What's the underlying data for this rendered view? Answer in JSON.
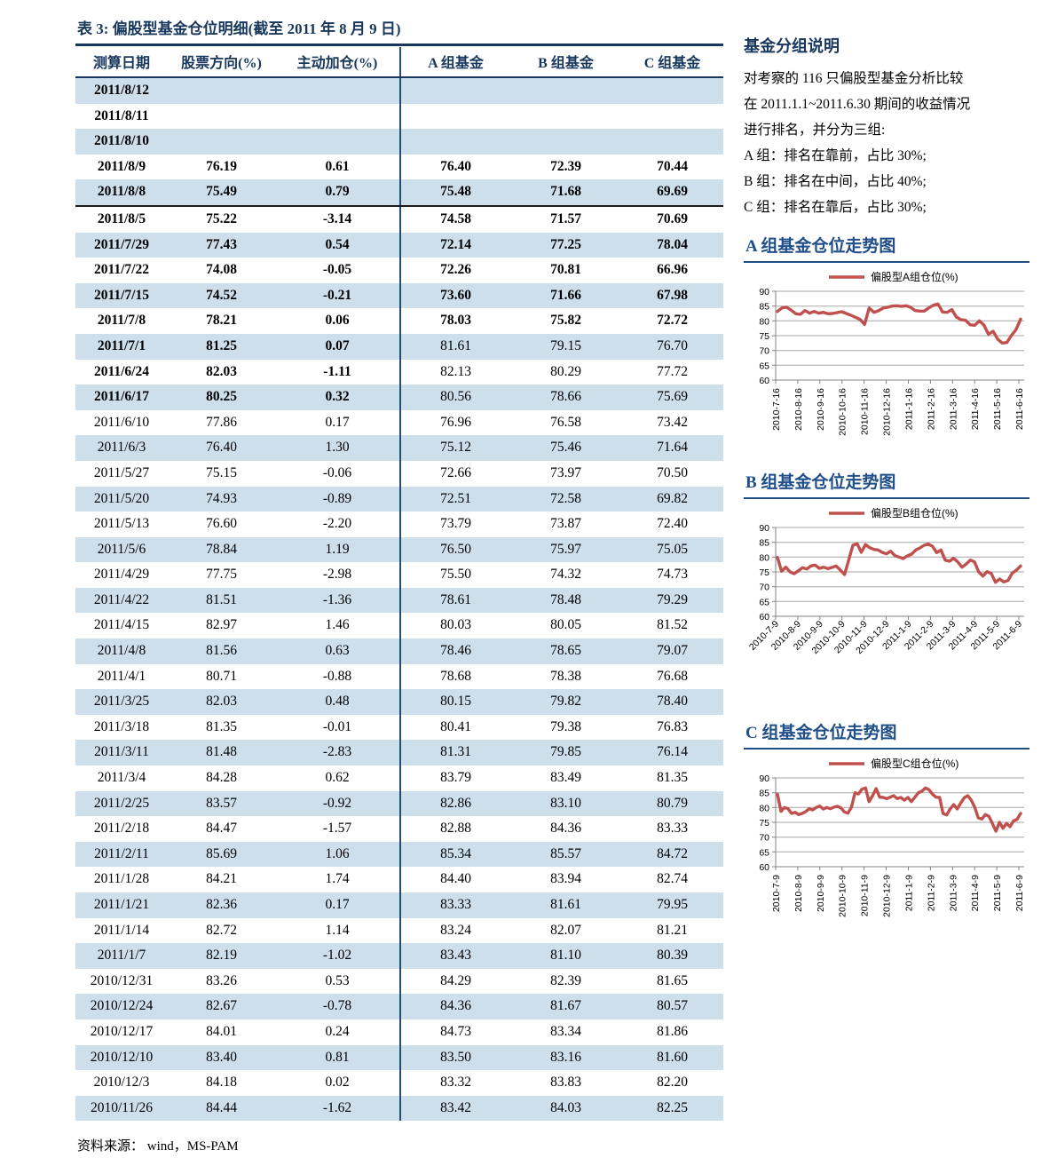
{
  "table": {
    "title": "表 3:  偏股型基金仓位明细(截至 2011 年 8 月 9 日)",
    "columns": [
      "测算日期",
      "股票方向(%)",
      "主动加仓(%)",
      "A 组基金",
      "B 组基金",
      "C 组基金"
    ],
    "rows": [
      {
        "c": [
          "2011/8/12",
          "",
          "",
          "",
          "",
          ""
        ],
        "emph": "full",
        "cut": false
      },
      {
        "c": [
          "2011/8/11",
          "",
          "",
          "",
          "",
          ""
        ],
        "emph": "full",
        "cut": false
      },
      {
        "c": [
          "2011/8/10",
          "",
          "",
          "",
          "",
          ""
        ],
        "emph": "full",
        "cut": false
      },
      {
        "c": [
          "2011/8/9",
          "76.19",
          "0.61",
          "76.40",
          "72.39",
          "70.44"
        ],
        "emph": "full",
        "cut": false
      },
      {
        "c": [
          "2011/8/8",
          "75.49",
          "0.79",
          "75.48",
          "71.68",
          "69.69"
        ],
        "emph": "full",
        "cut": true
      },
      {
        "c": [
          "2011/8/5",
          "75.22",
          "-3.14",
          "74.58",
          "71.57",
          "70.69"
        ],
        "emph": "full",
        "cut": false
      },
      {
        "c": [
          "2011/7/29",
          "77.43",
          "0.54",
          "72.14",
          "77.25",
          "78.04"
        ],
        "emph": "full",
        "cut": false
      },
      {
        "c": [
          "2011/7/22",
          "74.08",
          "-0.05",
          "72.26",
          "70.81",
          "66.96"
        ],
        "emph": "full",
        "cut": false
      },
      {
        "c": [
          "2011/7/15",
          "74.52",
          "-0.21",
          "73.60",
          "71.66",
          "67.98"
        ],
        "emph": "full",
        "cut": false
      },
      {
        "c": [
          "2011/7/8",
          "78.21",
          "0.06",
          "78.03",
          "75.82",
          "72.72"
        ],
        "emph": "full",
        "cut": false
      },
      {
        "c": [
          "2011/7/1",
          "81.25",
          "0.07",
          "81.61",
          "79.15",
          "76.70"
        ],
        "emph": "left",
        "cut": false
      },
      {
        "c": [
          "2011/6/24",
          "82.03",
          "-1.11",
          "82.13",
          "80.29",
          "77.72"
        ],
        "emph": "left",
        "cut": false
      },
      {
        "c": [
          "2011/6/17",
          "80.25",
          "0.32",
          "80.56",
          "78.66",
          "75.69"
        ],
        "emph": "left",
        "cut": false
      },
      {
        "c": [
          "2011/6/10",
          "77.86",
          "0.17",
          "76.96",
          "76.58",
          "73.42"
        ],
        "emph": "",
        "cut": false
      },
      {
        "c": [
          "2011/6/3",
          "76.40",
          "1.30",
          "75.12",
          "75.46",
          "71.64"
        ],
        "emph": "",
        "cut": false
      },
      {
        "c": [
          "2011/5/27",
          "75.15",
          "-0.06",
          "72.66",
          "73.97",
          "70.50"
        ],
        "emph": "",
        "cut": false
      },
      {
        "c": [
          "2011/5/20",
          "74.93",
          "-0.89",
          "72.51",
          "72.58",
          "69.82"
        ],
        "emph": "",
        "cut": false
      },
      {
        "c": [
          "2011/5/13",
          "76.60",
          "-2.20",
          "73.79",
          "73.87",
          "72.40"
        ],
        "emph": "",
        "cut": false
      },
      {
        "c": [
          "2011/5/6",
          "78.84",
          "1.19",
          "76.50",
          "75.97",
          "75.05"
        ],
        "emph": "",
        "cut": false
      },
      {
        "c": [
          "2011/4/29",
          "77.75",
          "-2.98",
          "75.50",
          "74.32",
          "74.73"
        ],
        "emph": "",
        "cut": false
      },
      {
        "c": [
          "2011/4/22",
          "81.51",
          "-1.36",
          "78.61",
          "78.48",
          "79.29"
        ],
        "emph": "",
        "cut": false
      },
      {
        "c": [
          "2011/4/15",
          "82.97",
          "1.46",
          "80.03",
          "80.05",
          "81.52"
        ],
        "emph": "",
        "cut": false
      },
      {
        "c": [
          "2011/4/8",
          "81.56",
          "0.63",
          "78.46",
          "78.65",
          "79.07"
        ],
        "emph": "",
        "cut": false
      },
      {
        "c": [
          "2011/4/1",
          "80.71",
          "-0.88",
          "78.68",
          "78.38",
          "76.68"
        ],
        "emph": "",
        "cut": false
      },
      {
        "c": [
          "2011/3/25",
          "82.03",
          "0.48",
          "80.15",
          "79.82",
          "78.40"
        ],
        "emph": "",
        "cut": false
      },
      {
        "c": [
          "2011/3/18",
          "81.35",
          "-0.01",
          "80.41",
          "79.38",
          "76.83"
        ],
        "emph": "",
        "cut": false
      },
      {
        "c": [
          "2011/3/11",
          "81.48",
          "-2.83",
          "81.31",
          "79.85",
          "76.14"
        ],
        "emph": "",
        "cut": false
      },
      {
        "c": [
          "2011/3/4",
          "84.28",
          "0.62",
          "83.79",
          "83.49",
          "81.35"
        ],
        "emph": "",
        "cut": false
      },
      {
        "c": [
          "2011/2/25",
          "83.57",
          "-0.92",
          "82.86",
          "83.10",
          "80.79"
        ],
        "emph": "",
        "cut": false
      },
      {
        "c": [
          "2011/2/18",
          "84.47",
          "-1.57",
          "82.88",
          "84.36",
          "83.33"
        ],
        "emph": "",
        "cut": false
      },
      {
        "c": [
          "2011/2/11",
          "85.69",
          "1.06",
          "85.34",
          "85.57",
          "84.72"
        ],
        "emph": "",
        "cut": false
      },
      {
        "c": [
          "2011/1/28",
          "84.21",
          "1.74",
          "84.40",
          "83.94",
          "82.74"
        ],
        "emph": "",
        "cut": false
      },
      {
        "c": [
          "2011/1/21",
          "82.36",
          "0.17",
          "83.33",
          "81.61",
          "79.95"
        ],
        "emph": "",
        "cut": false
      },
      {
        "c": [
          "2011/1/14",
          "82.72",
          "1.14",
          "83.24",
          "82.07",
          "81.21"
        ],
        "emph": "",
        "cut": false
      },
      {
        "c": [
          "2011/1/7",
          "82.19",
          "-1.02",
          "83.43",
          "81.10",
          "80.39"
        ],
        "emph": "",
        "cut": false
      },
      {
        "c": [
          "2010/12/31",
          "83.26",
          "0.53",
          "84.29",
          "82.39",
          "81.65"
        ],
        "emph": "",
        "cut": false
      },
      {
        "c": [
          "2010/12/24",
          "82.67",
          "-0.78",
          "84.36",
          "81.67",
          "80.57"
        ],
        "emph": "",
        "cut": false
      },
      {
        "c": [
          "2010/12/17",
          "84.01",
          "0.24",
          "84.73",
          "83.34",
          "81.86"
        ],
        "emph": "",
        "cut": false
      },
      {
        "c": [
          "2010/12/10",
          "83.40",
          "0.81",
          "83.50",
          "83.16",
          "81.60"
        ],
        "emph": "",
        "cut": false
      },
      {
        "c": [
          "2010/12/3",
          "84.18",
          "0.02",
          "83.32",
          "83.83",
          "82.20"
        ],
        "emph": "",
        "cut": false
      },
      {
        "c": [
          "2010/11/26",
          "84.44",
          "-1.62",
          "83.42",
          "84.03",
          "82.25"
        ],
        "emph": "",
        "cut": false
      }
    ],
    "source": "资料来源： wind，MS-PAM"
  },
  "sidebar": {
    "note": {
      "title": "基金分组说明",
      "lines": [
        "对考察的 116 只偏股型基金分析比较",
        "在 2011.1.1~2011.6.30 期间的收益情况",
        "进行排名，并分为三组:",
        "A 组：排名在靠前，占比 30%;",
        "B 组：排名在中间，占比 40%;",
        "C 组：排名在靠后，占比 30%;"
      ]
    }
  },
  "chart_data": [
    {
      "type": "line",
      "title": "A 组基金仓位走势图",
      "legend_position": "top",
      "grid": true,
      "ylim": [
        60,
        90
      ],
      "y_ticks": [
        60,
        65,
        70,
        75,
        80,
        85,
        90
      ],
      "x_ticks": [
        "2010-7-16",
        "2010-8-16",
        "2010-9-16",
        "2010-10-16",
        "2010-11-16",
        "2010-12-16",
        "2011-1-16",
        "2011-2-16",
        "2011-3-16",
        "2011-4-16",
        "2011-5-16",
        "2011-6-16"
      ],
      "label_rotation": -90,
      "line_color": "#C0504D",
      "series": [
        {
          "name": "偏股型A组仓位(%)",
          "values": [
            83.2,
            84.4,
            84.6,
            83.6,
            82.4,
            82.2,
            83.5,
            82.6,
            83.2,
            82.6,
            82.9,
            82.4,
            82.5,
            82.8,
            83.1,
            82.5,
            81.9,
            81.2,
            80.5,
            78.8,
            84.4,
            82.9,
            83.4,
            84.3,
            84.6,
            85.0,
            85.1,
            84.9,
            85.1,
            84.6,
            83.5,
            83.3,
            83.3,
            84.4,
            85.3,
            85.7,
            83.0,
            82.9,
            83.8,
            81.3,
            80.4,
            80.2,
            78.7,
            78.5,
            80.0,
            78.6,
            75.5,
            76.5,
            73.8,
            72.5,
            72.7,
            75.1,
            77.0,
            80.6
          ]
        }
      ]
    },
    {
      "type": "line",
      "title": "B 组基金仓位走势图",
      "legend_position": "top",
      "grid": true,
      "ylim": [
        60,
        90
      ],
      "y_ticks": [
        60,
        65,
        70,
        75,
        80,
        85,
        90
      ],
      "x_ticks": [
        "2010-7-9",
        "2010-8-9",
        "2010-9-9",
        "2010-10-9",
        "2010-11-9",
        "2010-12-9",
        "2011-1-9",
        "2011-2-9",
        "2011-3-9",
        "2011-4-9",
        "2011-5-9",
        "2011-6-9"
      ],
      "label_rotation": -45,
      "line_color": "#C0504D",
      "series": [
        {
          "name": "偏股型B组仓位(%)",
          "values": [
            79.9,
            75.2,
            76.6,
            75.0,
            74.4,
            75.4,
            76.4,
            76.0,
            77.0,
            77.3,
            76.2,
            76.6,
            76.1,
            76.5,
            77.0,
            75.6,
            74.1,
            79.0,
            84.0,
            84.5,
            81.6,
            84.2,
            83.2,
            82.6,
            82.4,
            81.6,
            81.1,
            82.0,
            80.5,
            80.0,
            79.5,
            80.4,
            81.0,
            82.4,
            83.1,
            84.0,
            84.4,
            83.6,
            81.5,
            82.4,
            79.0,
            78.6,
            79.6,
            78.4,
            76.6,
            77.6,
            79.0,
            78.4,
            75.0,
            73.6,
            75.1,
            74.5,
            71.5,
            72.6,
            71.6,
            72.1,
            74.6,
            75.6,
            77.0
          ]
        }
      ]
    },
    {
      "type": "line",
      "title": "C 组基金仓位走势图",
      "legend_position": "top",
      "grid": true,
      "ylim": [
        60,
        90
      ],
      "y_ticks": [
        60,
        65,
        70,
        75,
        80,
        85,
        90
      ],
      "x_ticks": [
        "2010-7-9",
        "2010-8-9",
        "2010-9-9",
        "2010-10-9",
        "2010-11-9",
        "2010-12-9",
        "2011-1-9",
        "2011-2-9",
        "2011-3-9",
        "2011-4-9",
        "2011-5-9",
        "2011-6-9"
      ],
      "label_rotation": -90,
      "line_color": "#C0504D",
      "series": [
        {
          "name": "偏股型C组仓位(%)",
          "values": [
            84.5,
            78.7,
            80.0,
            79.6,
            78.0,
            78.4,
            77.6,
            78.0,
            78.6,
            79.6,
            79.2,
            80.0,
            80.5,
            79.5,
            80.0,
            79.6,
            80.1,
            80.4,
            79.9,
            78.5,
            78.1,
            80.1,
            85.0,
            84.6,
            86.2,
            86.6,
            82.0,
            84.0,
            86.4,
            83.5,
            83.4,
            83.0,
            83.5,
            84.0,
            83.0,
            83.4,
            82.5,
            83.4,
            82.0,
            83.5,
            85.0,
            85.5,
            86.6,
            86.0,
            84.5,
            83.5,
            83.4,
            78.0,
            77.5,
            79.5,
            81.0,
            79.5,
            81.5,
            83.3,
            84.0,
            82.5,
            80.0,
            76.5,
            76.1,
            77.6,
            77.0,
            74.6,
            72.0,
            75.0,
            73.0,
            74.6,
            73.5,
            75.5,
            76.0,
            78.0
          ]
        }
      ]
    }
  ],
  "colors": {
    "title_navy": "#17375D",
    "chart_heading_blue": "#1F4E88",
    "row_stripe": "#CEDFEC",
    "column_divider": "#1F4E79",
    "series_red": "#C0504D",
    "gridline_gray": "#A6A6A6"
  }
}
